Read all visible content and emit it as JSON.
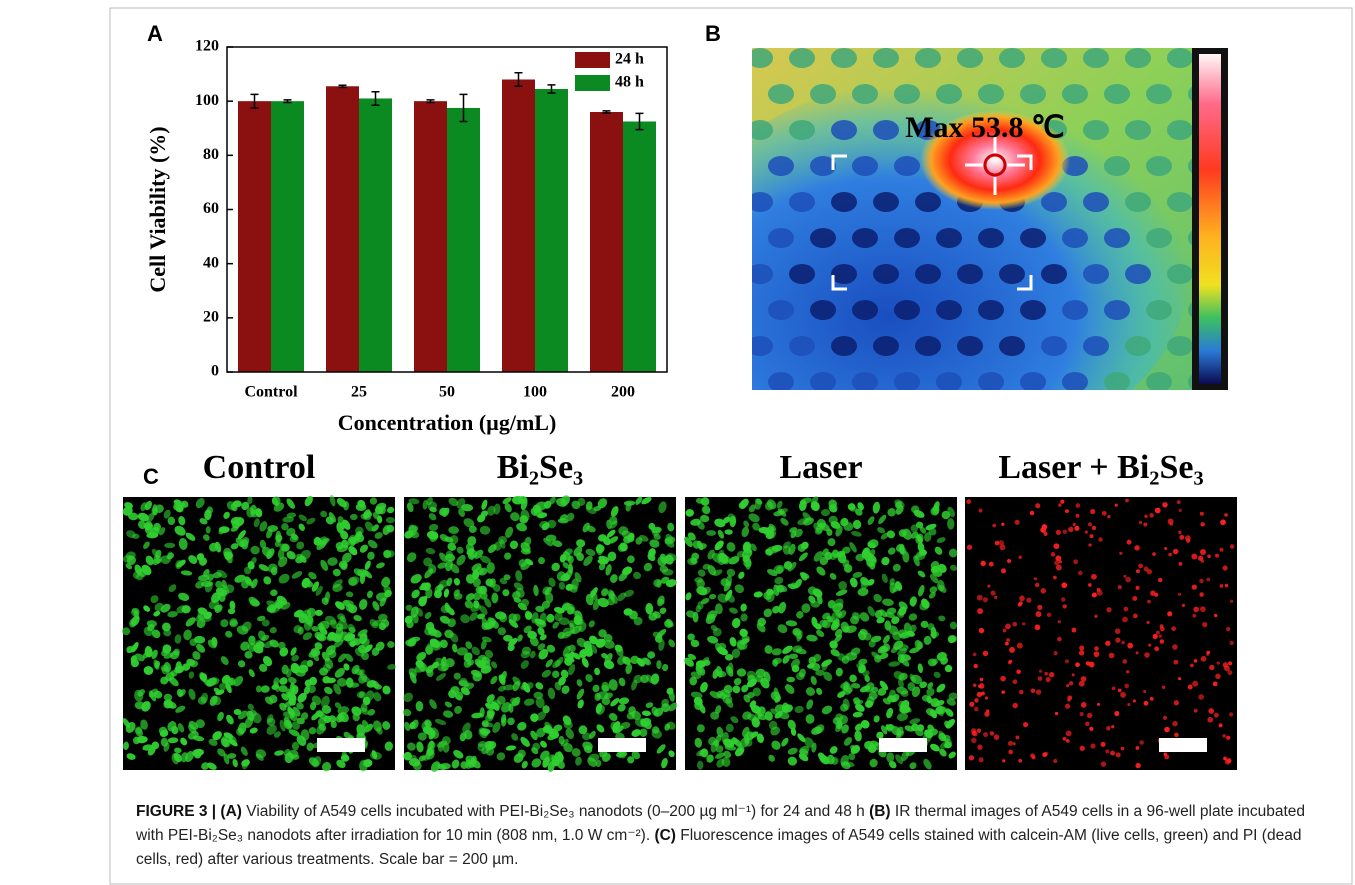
{
  "chart_data": {
    "type": "bar",
    "panel_label": "A",
    "categories": [
      "Control",
      "25",
      "50",
      "100",
      "200"
    ],
    "series": [
      {
        "name": "24 h",
        "color": "#8b1010",
        "values": [
          100,
          105.5,
          100,
          108,
          96
        ],
        "errors": [
          2.5,
          0.4,
          0.5,
          2.5,
          0.4
        ]
      },
      {
        "name": "48 h",
        "color": "#0b8a22",
        "values": [
          100,
          101,
          97.5,
          104.5,
          92.5
        ],
        "errors": [
          0.5,
          2.5,
          5,
          1.5,
          3
        ]
      }
    ],
    "xlabel": "Concentration (µg/mL)",
    "ylabel": "Cell Viability (%)",
    "ylim": [
      0,
      120
    ],
    "yticks": [
      0,
      20,
      40,
      60,
      80,
      100,
      120
    ],
    "legend": "upper right"
  },
  "panel_b": {
    "label": "B",
    "annotation": "Max 53.8 ℃"
  },
  "panel_c": {
    "label": "C",
    "titles": [
      "Control",
      "Bi₂Se₃",
      "Laser",
      "Laser + Bi₂Se₃"
    ]
  },
  "caption": [
    {
      "text": "FIGURE 3 | (A)",
      "bold": true
    },
    {
      "text": " Viability of A549 cells incubated with PEI-Bi₂Se₃ nanodots (0–200 µg ml⁻¹) for 24 and 48 h ",
      "bold": false
    },
    {
      "text": "(B)",
      "bold": true
    },
    {
      "text": " IR thermal images of A549 cells in a 96-well plate incubated with PEI-Bi₂Se₃ nanodots after irradiation for 10 min (808 nm, 1.0 W cm⁻²). ",
      "bold": false
    },
    {
      "text": "(C)",
      "bold": true
    },
    {
      "text": " Fluorescence images of A549 cells stained with calcein-AM (live cells, green) and PI (dead cells, red) after various treatments. Scale bar = 200 µm.",
      "bold": false
    }
  ]
}
